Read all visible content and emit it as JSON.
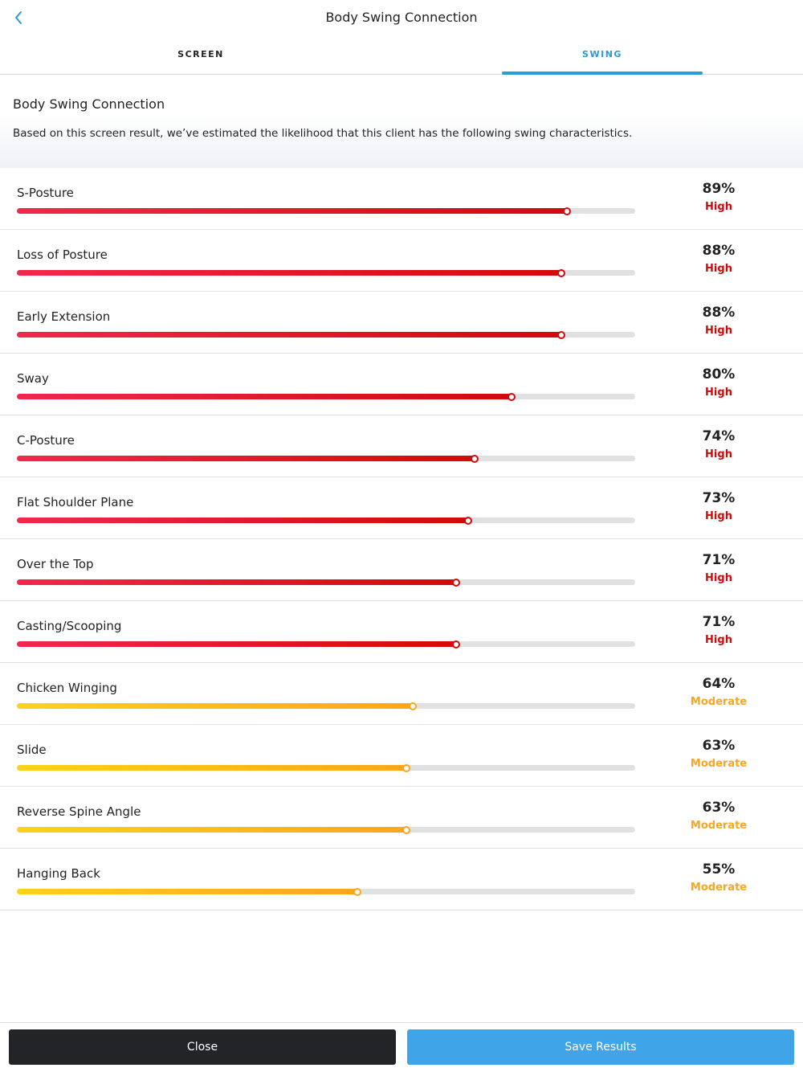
{
  "nav": {
    "title": "Body Swing Connection",
    "back_icon": "chevron-left-icon"
  },
  "tabs": [
    {
      "label": "SCREEN",
      "active": false
    },
    {
      "label": "SWING",
      "active": true
    }
  ],
  "header": {
    "title": "Body Swing Connection",
    "description": "Based on this screen result, we’ve estimated the likelihood that this client has the following swing characteristics."
  },
  "colors": {
    "accent": "#2b9ad8",
    "high_start": "#f0294d",
    "high_end": "#d20a0a",
    "moderate_start": "#fcd21a",
    "moderate_end": "#ffa51c",
    "high_text": "#d20a0a",
    "moderate_text": "#f5a623"
  },
  "characteristics": [
    {
      "label": "S-Posture",
      "percent": 89,
      "value_text": "89%",
      "level": "High"
    },
    {
      "label": "Loss of Posture",
      "percent": 88,
      "value_text": "88%",
      "level": "High"
    },
    {
      "label": "Early Extension",
      "percent": 88,
      "value_text": "88%",
      "level": "High"
    },
    {
      "label": "Sway",
      "percent": 80,
      "value_text": "80%",
      "level": "High"
    },
    {
      "label": "C-Posture",
      "percent": 74,
      "value_text": "74%",
      "level": "High"
    },
    {
      "label": "Flat Shoulder Plane",
      "percent": 73,
      "value_text": "73%",
      "level": "High"
    },
    {
      "label": "Over the Top",
      "percent": 71,
      "value_text": "71%",
      "level": "High"
    },
    {
      "label": "Casting/Scooping",
      "percent": 71,
      "value_text": "71%",
      "level": "High"
    },
    {
      "label": "Chicken Winging",
      "percent": 64,
      "value_text": "64%",
      "level": "Moderate"
    },
    {
      "label": "Slide",
      "percent": 63,
      "value_text": "63%",
      "level": "Moderate"
    },
    {
      "label": "Reverse Spine Angle",
      "percent": 63,
      "value_text": "63%",
      "level": "Moderate"
    },
    {
      "label": "Hanging Back",
      "percent": 55,
      "value_text": "55%",
      "level": "Moderate"
    }
  ],
  "footer": {
    "close_label": "Close",
    "save_label": "Save Results"
  }
}
